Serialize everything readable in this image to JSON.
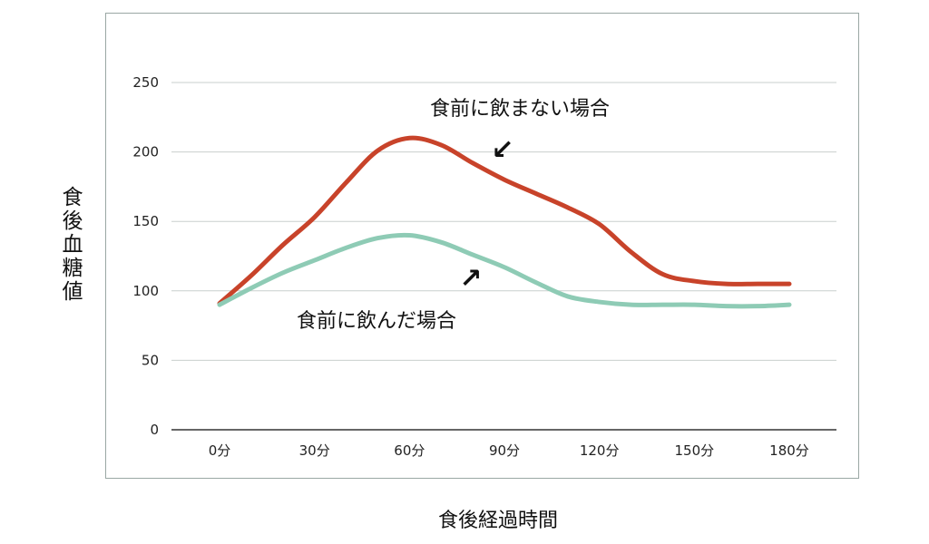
{
  "chart_data": {
    "type": "line",
    "title": "",
    "xlabel": "食後経過時間",
    "ylabel": "食後血糖値",
    "categories": [
      "0分",
      "30分",
      "60分",
      "90分",
      "120分",
      "150分",
      "180分"
    ],
    "x_minutes": [
      0,
      30,
      60,
      90,
      120,
      150,
      180
    ],
    "ylim": [
      0,
      250
    ],
    "yticks": [
      0,
      50,
      100,
      150,
      200,
      250
    ],
    "grid": true,
    "legend": "none",
    "series": [
      {
        "name": "食前に飲まない場合",
        "color": "#c8432a",
        "x": [
          0,
          10,
          20,
          30,
          40,
          50,
          60,
          70,
          80,
          90,
          100,
          110,
          120,
          130,
          140,
          150,
          160,
          170,
          180
        ],
        "values": [
          91,
          111,
          133,
          153,
          178,
          201,
          210,
          205,
          192,
          180,
          170,
          160,
          148,
          128,
          112,
          107,
          105,
          105,
          105
        ]
      },
      {
        "name": "食前に飲んだ場合",
        "color": "#8ecbb5",
        "x": [
          0,
          10,
          20,
          30,
          40,
          50,
          60,
          70,
          80,
          90,
          100,
          110,
          120,
          130,
          140,
          150,
          160,
          170,
          180
        ],
        "values": [
          90,
          102,
          113,
          122,
          131,
          138,
          140,
          135,
          126,
          117,
          106,
          96,
          92,
          90,
          90,
          90,
          89,
          89,
          90
        ]
      }
    ],
    "annotations": [
      {
        "text": "食前に飲まない場合",
        "series": 0,
        "arrow": "↙"
      },
      {
        "text": "食前に飲んだ場合",
        "series": 1,
        "arrow": "↗"
      }
    ]
  }
}
